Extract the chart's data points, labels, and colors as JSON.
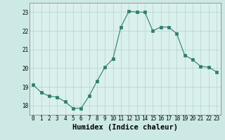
{
  "x": [
    0,
    1,
    2,
    3,
    4,
    5,
    6,
    7,
    8,
    9,
    10,
    11,
    12,
    13,
    14,
    15,
    16,
    17,
    18,
    19,
    20,
    21,
    22,
    23
  ],
  "y": [
    19.1,
    18.7,
    18.5,
    18.45,
    18.2,
    17.85,
    17.85,
    18.5,
    19.3,
    20.05,
    20.5,
    22.2,
    23.05,
    23.0,
    23.0,
    22.0,
    22.2,
    22.2,
    21.85,
    20.7,
    20.45,
    20.1,
    20.05,
    19.8
  ],
  "xlabel": "Humidex (Indice chaleur)",
  "xlim": [
    -0.5,
    23.5
  ],
  "ylim": [
    17.5,
    23.5
  ],
  "yticks": [
    18,
    19,
    20,
    21,
    22,
    23
  ],
  "xtick_labels": [
    "0",
    "1",
    "2",
    "3",
    "4",
    "5",
    "6",
    "7",
    "8",
    "9",
    "10",
    "11",
    "12",
    "13",
    "14",
    "15",
    "16",
    "17",
    "18",
    "19",
    "20",
    "21",
    "22",
    "23"
  ],
  "line_color": "#2e7d6e",
  "marker_color": "#2e7d6e",
  "bg_color": "#cce9e5",
  "grid_color": "#aed4cf",
  "axes_bg": "#daf0ed",
  "tick_label_fontsize": 5.5,
  "xlabel_fontsize": 7.5
}
